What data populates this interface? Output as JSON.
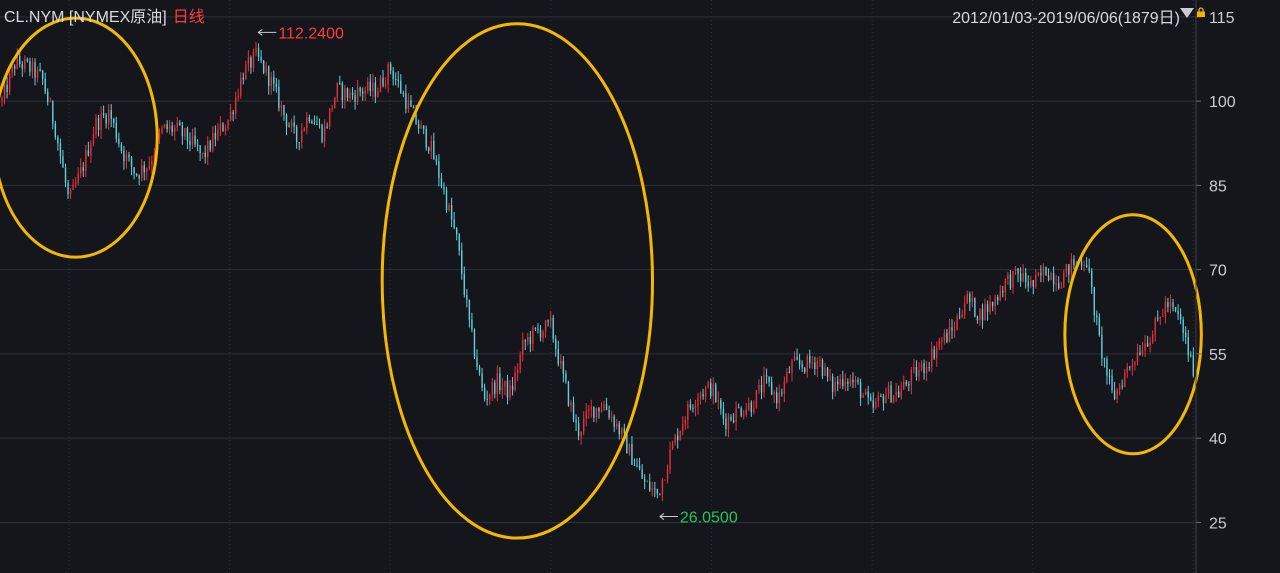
{
  "header": {
    "symbol": "CL.NYM [NYMEX原油]",
    "period": "日线",
    "date_range": "2012/01/03-2019/06/06(1879日)"
  },
  "icons": {
    "dropdown": "triangle-down-icon",
    "lock": "lock-icon"
  },
  "colors": {
    "background": "#14161b",
    "grid": "#2c3038",
    "up": "#e8303a",
    "down": "#5fd0d8",
    "high_label": "#ff3b3b",
    "low_label": "#22c55e",
    "circle": "#f5b800"
  },
  "chart_data": {
    "type": "candlestick",
    "title": "CL.NYM [NYMEX原油]",
    "period": "日线",
    "x_range": [
      "2012/01/03",
      "2019/06/06"
    ],
    "bar_count": 1879,
    "ylim": [
      16,
      118
    ],
    "yticks": [
      25,
      40,
      55,
      70,
      85,
      100,
      115
    ],
    "grid": true,
    "annotations": [
      {
        "type": "max",
        "label": "112.2400",
        "value": 112.24,
        "date": "2013-08"
      },
      {
        "type": "min",
        "label": "26.0500",
        "value": 26.05,
        "date": "2016-02"
      }
    ],
    "highlight_circles": [
      {
        "from": "2012-01",
        "to": "2012-12"
      },
      {
        "from": "2014-06",
        "to": "2016-01"
      },
      {
        "from": "2018-09",
        "to": "2019-06"
      }
    ],
    "price_path": [
      [
        "2012-01",
        100
      ],
      [
        "2012-02",
        107
      ],
      [
        "2012-03",
        106
      ],
      [
        "2012-04",
        104
      ],
      [
        "2012-05",
        95
      ],
      [
        "2012-06",
        82
      ],
      [
        "2012-07",
        88
      ],
      [
        "2012-08",
        96
      ],
      [
        "2012-09",
        98
      ],
      [
        "2012-10",
        91
      ],
      [
        "2012-11",
        87
      ],
      [
        "2012-12",
        89
      ],
      [
        "2013-01",
        95
      ],
      [
        "2013-02",
        95
      ],
      [
        "2013-03",
        93
      ],
      [
        "2013-04",
        90
      ],
      [
        "2013-05",
        94
      ],
      [
        "2013-06",
        97
      ],
      [
        "2013-07",
        105
      ],
      [
        "2013-08",
        108
      ],
      [
        "2013-09",
        104
      ],
      [
        "2013-10",
        98
      ],
      [
        "2013-11",
        93
      ],
      [
        "2013-12",
        98
      ],
      [
        "2014-01",
        94
      ],
      [
        "2014-02",
        102
      ],
      [
        "2014-03",
        101
      ],
      [
        "2014-04",
        102
      ],
      [
        "2014-05",
        102
      ],
      [
        "2014-06",
        106
      ],
      [
        "2014-07",
        101
      ],
      [
        "2014-08",
        96
      ],
      [
        "2014-09",
        92
      ],
      [
        "2014-10",
        84
      ],
      [
        "2014-11",
        75
      ],
      [
        "2014-12",
        59
      ],
      [
        "2015-01",
        47
      ],
      [
        "2015-02",
        50
      ],
      [
        "2015-03",
        48
      ],
      [
        "2015-04",
        57
      ],
      [
        "2015-05",
        59
      ],
      [
        "2015-06",
        60
      ],
      [
        "2015-07",
        50
      ],
      [
        "2015-08",
        41
      ],
      [
        "2015-09",
        45
      ],
      [
        "2015-10",
        46
      ],
      [
        "2015-11",
        42
      ],
      [
        "2015-12",
        37
      ],
      [
        "2016-01",
        32
      ],
      [
        "2016-02",
        30
      ],
      [
        "2016-03",
        38
      ],
      [
        "2016-04",
        44
      ],
      [
        "2016-05",
        48
      ],
      [
        "2016-06",
        49
      ],
      [
        "2016-07",
        43
      ],
      [
        "2016-08",
        45
      ],
      [
        "2016-09",
        46
      ],
      [
        "2016-10",
        50
      ],
      [
        "2016-11",
        47
      ],
      [
        "2016-12",
        53
      ],
      [
        "2017-01",
        53
      ],
      [
        "2017-02",
        54
      ],
      [
        "2017-03",
        49
      ],
      [
        "2017-04",
        51
      ],
      [
        "2017-05",
        49
      ],
      [
        "2017-06",
        45
      ],
      [
        "2017-07",
        48
      ],
      [
        "2017-08",
        48
      ],
      [
        "2017-09",
        51
      ],
      [
        "2017-10",
        53
      ],
      [
        "2017-11",
        57
      ],
      [
        "2017-12",
        59
      ],
      [
        "2018-01",
        65
      ],
      [
        "2018-02",
        62
      ],
      [
        "2018-03",
        64
      ],
      [
        "2018-04",
        68
      ],
      [
        "2018-05",
        69
      ],
      [
        "2018-06",
        67
      ],
      [
        "2018-07",
        70
      ],
      [
        "2018-08",
        68
      ],
      [
        "2018-09",
        71
      ],
      [
        "2018-10",
        72
      ],
      [
        "2018-11",
        57
      ],
      [
        "2018-12",
        47
      ],
      [
        "2019-01",
        52
      ],
      [
        "2019-02",
        56
      ],
      [
        "2019-03",
        59
      ],
      [
        "2019-04",
        64
      ],
      [
        "2019-05",
        61
      ],
      [
        "2019-06",
        52
      ]
    ]
  }
}
